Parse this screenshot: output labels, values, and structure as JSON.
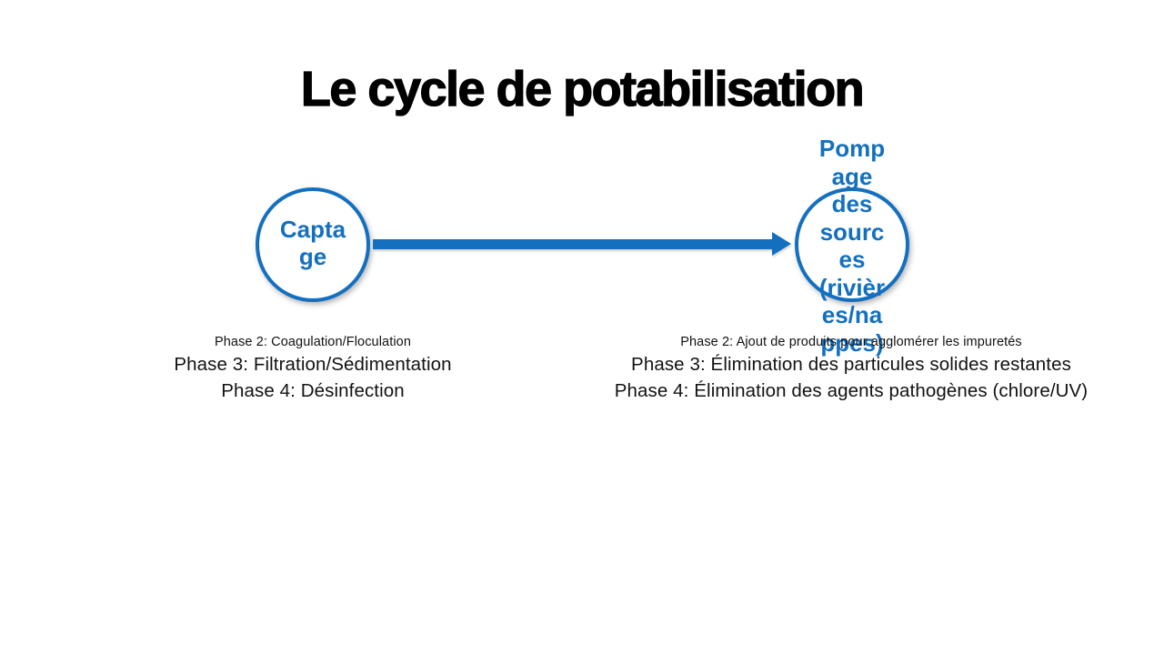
{
  "slide": {
    "title": "Le cycle de potabilisation",
    "accent_color": "#1470BF",
    "background_color": "#ffffff",
    "nodes": {
      "left": {
        "label": "Captage",
        "display": "Capta\nge"
      },
      "right": {
        "label": "Pompage des sources (rivières/nappes)",
        "display": "Pomp\nage\ndes\nsourc\nes\n(rivièr\nes/na\nppes)"
      }
    },
    "connector": {
      "type": "arrow",
      "direction": "left-to-right"
    },
    "phases_left": {
      "phase2": "Phase 2: Coagulation/Floculation",
      "phase3": "Phase 3: Filtration/Sédimentation",
      "phase4": "Phase 4: Désinfection"
    },
    "phases_right": {
      "phase2": "Phase 2: Ajout de produits pour agglomérer les impuretés",
      "phase3": "Phase 3: Élimination des particules solides restantes",
      "phase4": "Phase 4: Élimination des agents pathogènes (chlore/UV)"
    }
  }
}
